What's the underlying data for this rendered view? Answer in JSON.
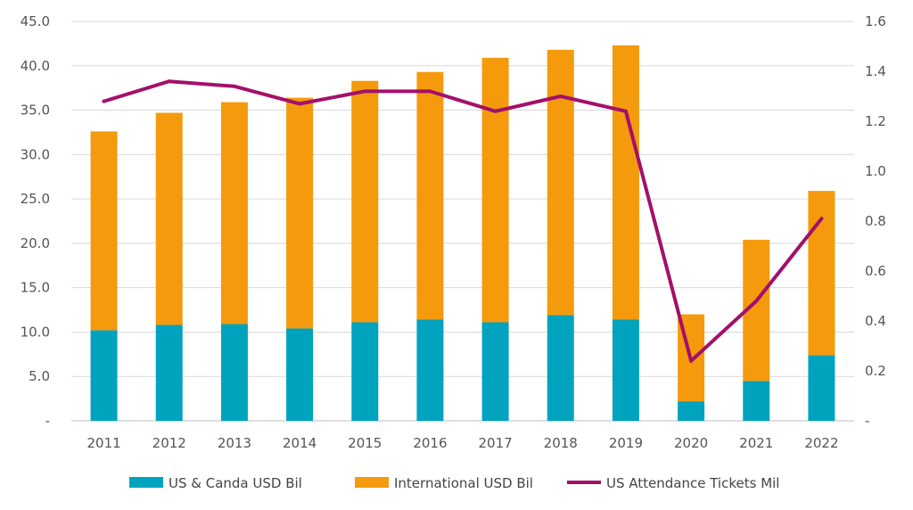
{
  "chart_data": {
    "type": "bar",
    "stacked": true,
    "categories": [
      "2011",
      "2012",
      "2013",
      "2014",
      "2015",
      "2016",
      "2017",
      "2018",
      "2019",
      "2020",
      "2021",
      "2022"
    ],
    "series": [
      {
        "name": "US & Canda USD Bil",
        "kind": "bar",
        "axis": "left",
        "color": "#00a3be",
        "values": [
          10.2,
          10.8,
          10.9,
          10.4,
          11.1,
          11.4,
          11.1,
          11.9,
          11.4,
          2.2,
          4.5,
          7.4
        ]
      },
      {
        "name": "International USD Bil",
        "kind": "bar",
        "axis": "left",
        "color": "#f59a0d",
        "values": [
          22.4,
          23.9,
          25.0,
          26.0,
          27.2,
          27.9,
          29.8,
          29.9,
          30.9,
          9.8,
          15.9,
          18.5
        ]
      },
      {
        "name": "US Attendance Tickets Mil",
        "kind": "line",
        "axis": "right",
        "color": "#a3106b",
        "values": [
          1.28,
          1.36,
          1.34,
          1.27,
          1.32,
          1.32,
          1.24,
          1.3,
          1.24,
          0.24,
          0.48,
          0.81
        ]
      }
    ],
    "y_left": {
      "ylim": [
        0,
        45
      ],
      "ticks": [
        0,
        5,
        10,
        15,
        20,
        25,
        30,
        35,
        40,
        45
      ],
      "tick_labels": [
        "-",
        "5.0",
        "10.0",
        "15.0",
        "20.0",
        "25.0",
        "30.0",
        "35.0",
        "40.0",
        "45.0"
      ]
    },
    "y_right": {
      "ylim": [
        0,
        1.6
      ],
      "ticks": [
        0,
        0.2,
        0.4,
        0.6,
        0.8,
        1.0,
        1.2,
        1.4,
        1.6
      ],
      "tick_labels": [
        "-",
        "0.2",
        "0.4",
        "0.6",
        "0.8",
        "1.0",
        "1.2",
        "1.4",
        "1.6"
      ]
    },
    "title": "",
    "xlabel": "",
    "ylabel": "",
    "grid": true,
    "legend_position": "bottom"
  },
  "colors": {
    "grid": "#d9d9d9",
    "axis": "#bfbfbf"
  }
}
